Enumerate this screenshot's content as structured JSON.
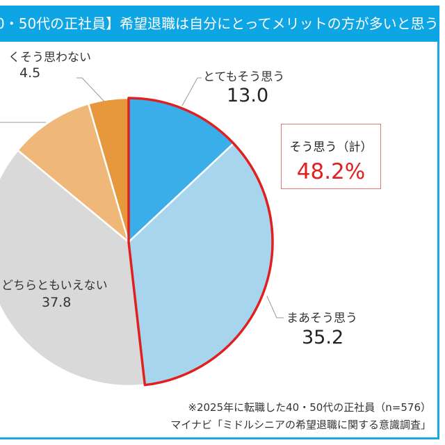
{
  "title": "0・50代の正社員】希望退職は自分にとってメリットの方が多いと思う",
  "summary_box": {
    "label": "そう思う（計）",
    "value": "48.2%"
  },
  "footnote": "※2025年に転職した40・50代の正社員（n=576）",
  "source": "マイナビ「ミドルシニアの希望退職に関する意識調査」",
  "chart_data": {
    "type": "pie",
    "start": "top",
    "direction": "clockwise",
    "highlight": {
      "label": "そう思う（計）",
      "slices": [
        0,
        1
      ],
      "value": 48.2,
      "color": "#e02020"
    },
    "slices": [
      {
        "label": "とてもそう思う",
        "value": 13.0,
        "value_text": "13.0",
        "color": "#3aaee8"
      },
      {
        "label": "まあそう思う",
        "value": 35.2,
        "value_text": "35.2",
        "color": "#a8d5ee"
      },
      {
        "label": "どちらともいえない",
        "value": 37.8,
        "value_text": "37.8",
        "color": "#d9d9d9"
      },
      {
        "value": 9.5,
        "color": "#efb778"
      },
      {
        "label": "くそう思わない",
        "value": 4.5,
        "value_text": "4.5",
        "color": "#e8983c"
      }
    ]
  }
}
